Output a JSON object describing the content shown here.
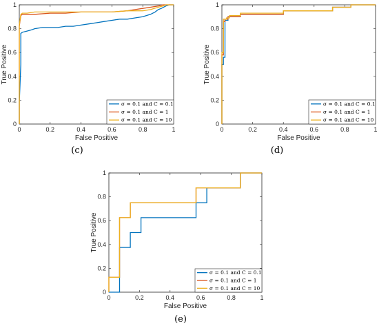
{
  "chart_data": [
    {
      "type": "line",
      "xlabel": "False Positive",
      "ylabel": "True Positive",
      "caption": "(c)",
      "xlim": [
        0,
        1
      ],
      "ylim": [
        0,
        1
      ],
      "xticks": [
        "0",
        "0.2",
        "0.4",
        "0.6",
        "0.8",
        "1"
      ],
      "yticks": [
        "0",
        "0.2",
        "0.4",
        "0.6",
        "0.8",
        "1"
      ],
      "legend_position": "bottom-right",
      "series": [
        {
          "name": "σ = 0.1 and C = 0.1",
          "color": "#0072BD",
          "x": [
            0,
            0,
            0.01,
            0.01,
            0.02,
            0.05,
            0.08,
            0.1,
            0.15,
            0.2,
            0.25,
            0.3,
            0.35,
            0.4,
            0.45,
            0.5,
            0.55,
            0.6,
            0.65,
            0.7,
            0.75,
            0.8,
            0.85,
            0.88,
            0.9,
            0.92,
            0.95,
            0.97,
            1
          ],
          "y": [
            0,
            0.18,
            0.5,
            0.76,
            0.77,
            0.78,
            0.79,
            0.8,
            0.81,
            0.81,
            0.81,
            0.82,
            0.82,
            0.83,
            0.84,
            0.85,
            0.86,
            0.87,
            0.88,
            0.88,
            0.89,
            0.9,
            0.92,
            0.94,
            0.96,
            0.97,
            0.99,
            1,
            1
          ]
        },
        {
          "name": "σ = 0.1 and C = 1",
          "color": "#D95319",
          "x": [
            0,
            0,
            0.01,
            0.02,
            0.05,
            0.1,
            0.2,
            0.3,
            0.4,
            0.5,
            0.6,
            0.7,
            0.75,
            0.8,
            0.85,
            0.9,
            0.93,
            0.95,
            1
          ],
          "y": [
            0,
            0.82,
            0.91,
            0.92,
            0.92,
            0.92,
            0.93,
            0.93,
            0.94,
            0.94,
            0.94,
            0.95,
            0.96,
            0.97,
            0.98,
            0.99,
            1,
            1,
            1
          ]
        },
        {
          "name": "σ = 0.1 and C = 10",
          "color": "#EDB120",
          "x": [
            0,
            0,
            0.01,
            0.02,
            0.05,
            0.1,
            0.2,
            0.3,
            0.4,
            0.5,
            0.6,
            0.7,
            0.8,
            0.85,
            0.9,
            0.93,
            0.95,
            1
          ],
          "y": [
            0,
            0.83,
            0.92,
            0.93,
            0.93,
            0.94,
            0.94,
            0.94,
            0.94,
            0.94,
            0.94,
            0.95,
            0.95,
            0.96,
            0.98,
            0.99,
            1,
            1
          ]
        }
      ]
    },
    {
      "type": "line",
      "xlabel": "False Positive",
      "ylabel": "True Positive",
      "caption": "(d)",
      "xlim": [
        0,
        1
      ],
      "ylim": [
        0,
        1
      ],
      "xticks": [
        "0",
        "0.2",
        "0.4",
        "0.6",
        "0.8",
        "1"
      ],
      "yticks": [
        "0",
        "0.2",
        "0.4",
        "0.6",
        "0.8",
        "1"
      ],
      "legend_position": "bottom-right",
      "series": [
        {
          "name": "σ = 0.1 and C = 0.1",
          "color": "#0072BD",
          "x": [
            0,
            0,
            0.01,
            0.01,
            0.02,
            0.02,
            0.04,
            0.04,
            0.12,
            0.12,
            0.4,
            0.4,
            0.72,
            0.72,
            0.84,
            0.84,
            1
          ],
          "y": [
            0,
            0.5,
            0.5,
            0.56,
            0.56,
            0.87,
            0.87,
            0.9,
            0.9,
            0.92,
            0.92,
            0.95,
            0.95,
            0.98,
            0.98,
            1,
            1
          ]
        },
        {
          "name": "σ = 0.1 and C = 1",
          "color": "#D95319",
          "x": [
            0,
            0,
            0.01,
            0.01,
            0.02,
            0.02,
            0.04,
            0.04,
            0.12,
            0.12,
            0.4,
            0.4,
            0.72,
            0.72,
            0.84,
            0.84,
            1
          ],
          "y": [
            0,
            0.58,
            0.58,
            0.86,
            0.86,
            0.88,
            0.88,
            0.9,
            0.9,
            0.92,
            0.92,
            0.95,
            0.95,
            0.98,
            0.98,
            1,
            1
          ]
        },
        {
          "name": "σ = 0.1 and C = 10",
          "color": "#EDB120",
          "x": [
            0,
            0,
            0.01,
            0.01,
            0.03,
            0.03,
            0.05,
            0.05,
            0.12,
            0.12,
            0.4,
            0.4,
            0.72,
            0.72,
            0.84,
            0.84,
            1
          ],
          "y": [
            0,
            0.6,
            0.6,
            0.88,
            0.88,
            0.89,
            0.89,
            0.91,
            0.91,
            0.93,
            0.93,
            0.95,
            0.95,
            0.98,
            0.98,
            1,
            1
          ]
        }
      ]
    },
    {
      "type": "line",
      "xlabel": "False Positive",
      "ylabel": "True Positive",
      "caption": "(e)",
      "xlim": [
        0,
        1
      ],
      "ylim": [
        0,
        1
      ],
      "xticks": [
        "0",
        "0.2",
        "0.4",
        "0.6",
        "0.8",
        "1"
      ],
      "yticks": [
        "0",
        "0.2",
        "0.4",
        "0.6",
        "0.8",
        "1"
      ],
      "legend_position": "bottom-right",
      "series": [
        {
          "name": "σ = 0.1 and C = 0.1",
          "color": "#0072BD",
          "x": [
            0,
            0.07,
            0.07,
            0.14,
            0.14,
            0.21,
            0.21,
            0.57,
            0.57,
            0.64,
            0.64,
            0.86,
            0.86,
            1
          ],
          "y": [
            0,
            0,
            0.375,
            0.375,
            0.5,
            0.5,
            0.625,
            0.625,
            0.75,
            0.75,
            0.875,
            0.875,
            1,
            1
          ]
        },
        {
          "name": "σ = 0.1 and C = 1",
          "color": "#D95319",
          "x": [
            0,
            0,
            0.07,
            0.07,
            0.14,
            0.14,
            0.57,
            0.57,
            0.86,
            0.86,
            1
          ],
          "y": [
            0,
            0.125,
            0.125,
            0.625,
            0.625,
            0.75,
            0.75,
            0.875,
            0.875,
            1,
            1
          ]
        },
        {
          "name": "σ = 0.1 and C = 10",
          "color": "#EDB120",
          "x": [
            0,
            0,
            0.07,
            0.07,
            0.14,
            0.14,
            0.57,
            0.57,
            0.86,
            0.86,
            1
          ],
          "y": [
            0,
            0.125,
            0.125,
            0.625,
            0.625,
            0.75,
            0.75,
            0.875,
            0.875,
            1,
            1
          ]
        }
      ]
    }
  ]
}
